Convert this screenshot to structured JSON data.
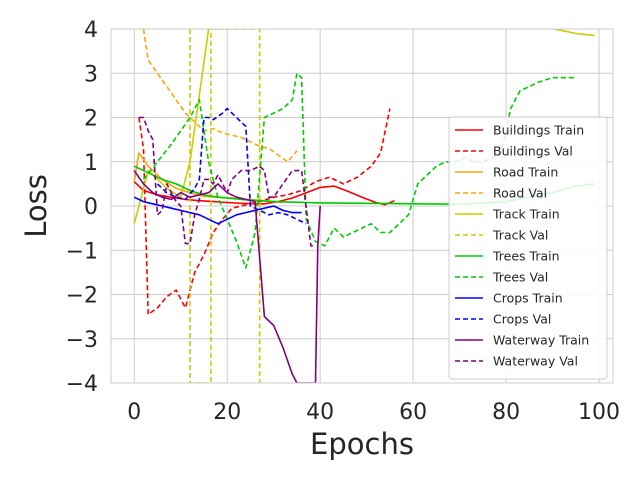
{
  "chart_data": {
    "type": "line",
    "xlabel": "Epochs",
    "ylabel": "Loss",
    "xlim": [
      -5,
      103
    ],
    "ylim": [
      -4,
      4
    ],
    "xticks": [
      0,
      20,
      40,
      60,
      80,
      100
    ],
    "xtick_labels": [
      "0",
      "20",
      "40",
      "60",
      "80",
      "100"
    ],
    "yticks": [
      -4,
      -3,
      -2,
      -1,
      0,
      1,
      2,
      3,
      4
    ],
    "ytick_labels": [
      "−4",
      "−3",
      "−2",
      "−1",
      "0",
      "1",
      "2",
      "3",
      "4"
    ],
    "grid": true,
    "legend_position": "right",
    "series": [
      {
        "name": "Buildings Train",
        "color": "#ff0000",
        "style": "solid",
        "points": [
          [
            0,
            0.55
          ],
          [
            2,
            0.35
          ],
          [
            5,
            0.25
          ],
          [
            8,
            0.2
          ],
          [
            11,
            0.15
          ],
          [
            14,
            0.12
          ],
          [
            17,
            0.1
          ],
          [
            20,
            0.08
          ],
          [
            23,
            0.06
          ],
          [
            26,
            0.05
          ],
          [
            28,
            0.05
          ],
          [
            31,
            0.1
          ],
          [
            34,
            0.18
          ],
          [
            37,
            0.3
          ],
          [
            40,
            0.42
          ],
          [
            43,
            0.45
          ],
          [
            46,
            0.33
          ],
          [
            49,
            0.2
          ],
          [
            52,
            0.08
          ],
          [
            54,
            0.03
          ],
          [
            56,
            0.12
          ]
        ]
      },
      {
        "name": "Buildings Val",
        "color": "#ff0000",
        "style": "dashed",
        "points": [
          [
            1,
            2.0
          ],
          [
            2,
            1.3
          ],
          [
            3,
            -2.45
          ],
          [
            5,
            -2.3
          ],
          [
            7,
            -2.05
          ],
          [
            9,
            -1.9
          ],
          [
            11,
            -2.3
          ],
          [
            13,
            -1.5
          ],
          [
            15,
            -1.1
          ],
          [
            17,
            -0.6
          ],
          [
            19,
            -0.3
          ],
          [
            21,
            -0.05
          ],
          [
            23,
            0.0
          ],
          [
            25,
            0.05
          ],
          [
            27,
            0.1
          ],
          [
            30,
            0.2
          ],
          [
            33,
            0.25
          ],
          [
            36,
            0.35
          ],
          [
            39,
            0.55
          ],
          [
            42,
            0.65
          ],
          [
            45,
            0.5
          ],
          [
            48,
            0.65
          ],
          [
            51,
            0.9
          ],
          [
            53,
            1.2
          ],
          [
            55,
            2.2
          ]
        ]
      },
      {
        "name": "Road Train",
        "color": "#ffa500",
        "style": "solid",
        "points": [
          [
            0,
            0.55
          ],
          [
            1,
            1.2
          ],
          [
            3,
            0.9
          ],
          [
            6,
            0.6
          ],
          [
            9,
            0.4
          ],
          [
            12,
            0.3
          ],
          [
            15,
            0.22
          ],
          [
            18,
            0.2
          ],
          [
            21,
            0.18
          ],
          [
            24,
            0.15
          ],
          [
            27,
            0.13
          ],
          [
            30,
            0.1
          ],
          [
            32,
            0.08
          ]
        ]
      },
      {
        "name": "Road Val",
        "color": "#ffa500",
        "style": "dashed",
        "points": [
          [
            2,
            4.0
          ],
          [
            3,
            3.3
          ],
          [
            5,
            3.0
          ],
          [
            7,
            2.7
          ],
          [
            9,
            2.4
          ],
          [
            11,
            2.1
          ],
          [
            13,
            1.9
          ],
          [
            15,
            1.7
          ],
          [
            17,
            1.75
          ],
          [
            19,
            1.65
          ],
          [
            21,
            1.6
          ],
          [
            23,
            1.55
          ],
          [
            25,
            1.45
          ],
          [
            27,
            1.35
          ],
          [
            29,
            1.3
          ],
          [
            31,
            1.15
          ],
          [
            33,
            1.0
          ],
          [
            35,
            1.25
          ]
        ]
      },
      {
        "name": "Track Train",
        "color": "#cccc00",
        "style": "solid",
        "points": [
          [
            0,
            -0.4
          ],
          [
            1,
            0.0
          ],
          [
            3,
            0.8
          ],
          [
            5,
            0.6
          ],
          [
            7,
            0.4
          ],
          [
            10,
            0.2
          ],
          [
            12,
            1.0
          ],
          [
            14,
            2.5
          ],
          [
            16,
            4.0
          ],
          [
            80,
            4.1
          ],
          [
            88,
            4.05
          ],
          [
            95,
            3.9
          ],
          [
            99,
            3.85
          ]
        ]
      },
      {
        "name": "Track Val",
        "color": "#cccc00",
        "style": "dashed",
        "points": [
          [
            12,
            4
          ],
          [
            12,
            -4
          ],
          [
            16.5,
            -4
          ],
          [
            16.5,
            4
          ],
          [
            27,
            4
          ],
          [
            27,
            -4
          ]
        ]
      },
      {
        "name": "Trees Train",
        "color": "#00cc00",
        "style": "solid",
        "points": [
          [
            0,
            0.9
          ],
          [
            3,
            0.75
          ],
          [
            6,
            0.6
          ],
          [
            9,
            0.5
          ],
          [
            12,
            0.35
          ],
          [
            15,
            0.25
          ],
          [
            18,
            0.2
          ],
          [
            21,
            0.17
          ],
          [
            24,
            0.14
          ],
          [
            30,
            0.1
          ],
          [
            40,
            0.07
          ],
          [
            50,
            0.06
          ],
          [
            60,
            0.05
          ],
          [
            70,
            0.04
          ],
          [
            80,
            0.1
          ],
          [
            90,
            0.3
          ],
          [
            95,
            0.45
          ],
          [
            99,
            0.5
          ]
        ]
      },
      {
        "name": "Trees Val",
        "color": "#00cc00",
        "style": "dashed",
        "points": [
          [
            2,
            0.6
          ],
          [
            5,
            1.0
          ],
          [
            8,
            1.4
          ],
          [
            10,
            1.7
          ],
          [
            12,
            2.0
          ],
          [
            14,
            2.4
          ],
          [
            16,
            1.0
          ],
          [
            18,
            0.2
          ],
          [
            20,
            -0.3
          ],
          [
            22,
            -0.8
          ],
          [
            24,
            -1.4
          ],
          [
            26,
            -0.6
          ],
          [
            28,
            2.0
          ],
          [
            30,
            2.1
          ],
          [
            32,
            2.2
          ],
          [
            34,
            2.4
          ],
          [
            35,
            3.0
          ],
          [
            36,
            2.9
          ],
          [
            37,
            -0.3
          ],
          [
            39,
            -0.8
          ],
          [
            41,
            -0.9
          ],
          [
            43,
            -0.5
          ],
          [
            45,
            -0.7
          ],
          [
            47,
            -0.6
          ],
          [
            49,
            -0.5
          ],
          [
            51,
            -0.4
          ],
          [
            53,
            -0.6
          ],
          [
            55,
            -0.6
          ],
          [
            57,
            -0.4
          ],
          [
            59,
            -0.2
          ],
          [
            61,
            0.5
          ],
          [
            63,
            0.7
          ],
          [
            65,
            0.9
          ],
          [
            67,
            1.0
          ],
          [
            69,
            1.0
          ],
          [
            71,
            1.1
          ],
          [
            73,
            1.0
          ],
          [
            75,
            1.0
          ],
          [
            77,
            1.1
          ],
          [
            79,
            1.2
          ],
          [
            81,
            2.2
          ],
          [
            83,
            2.6
          ],
          [
            85,
            2.7
          ],
          [
            87,
            2.8
          ],
          [
            90,
            2.9
          ],
          [
            93,
            2.9
          ],
          [
            95,
            2.9
          ]
        ]
      },
      {
        "name": "Crops Train",
        "color": "#0000ff",
        "style": "solid",
        "points": [
          [
            0,
            0.2
          ],
          [
            2,
            0.1
          ],
          [
            4,
            0.05
          ],
          [
            6,
            0.0
          ],
          [
            8,
            -0.05
          ],
          [
            10,
            -0.1
          ],
          [
            12,
            -0.15
          ],
          [
            14,
            -0.2
          ],
          [
            16,
            -0.3
          ],
          [
            18,
            -0.4
          ],
          [
            20,
            -0.3
          ],
          [
            22,
            -0.2
          ],
          [
            24,
            -0.15
          ],
          [
            26,
            -0.1
          ],
          [
            28,
            -0.05
          ],
          [
            30,
            0.0
          ],
          [
            32,
            -0.1
          ],
          [
            34,
            -0.15
          ],
          [
            36,
            -0.15
          ]
        ]
      },
      {
        "name": "Crops Val",
        "color": "#0000ff",
        "style": "dashed",
        "points": [
          [
            5,
            0.5
          ],
          [
            7,
            0.3
          ],
          [
            9,
            0.2
          ],
          [
            11,
            0.15
          ],
          [
            13,
            0.4
          ],
          [
            14,
            0.6
          ],
          [
            15,
            2.0
          ],
          [
            16,
            2.0
          ],
          [
            17,
            1.95
          ],
          [
            19,
            2.1
          ],
          [
            20,
            2.2
          ],
          [
            21,
            2.1
          ],
          [
            22,
            2.0
          ],
          [
            23,
            1.9
          ],
          [
            24,
            1.8
          ],
          [
            25,
            0.0
          ],
          [
            27,
            -0.1
          ],
          [
            29,
            -0.2
          ],
          [
            31,
            -0.15
          ],
          [
            33,
            -0.2
          ],
          [
            35,
            -0.3
          ],
          [
            37,
            -0.4
          ]
        ]
      },
      {
        "name": "Waterway Train",
        "color": "#800080",
        "style": "solid",
        "points": [
          [
            0,
            0.8
          ],
          [
            2,
            0.5
          ],
          [
            4,
            0.3
          ],
          [
            6,
            0.2
          ],
          [
            8,
            0.15
          ],
          [
            10,
            0.3
          ],
          [
            12,
            0.2
          ],
          [
            14,
            0.25
          ],
          [
            16,
            0.3
          ],
          [
            18,
            0.5
          ],
          [
            20,
            0.3
          ],
          [
            22,
            0.2
          ],
          [
            24,
            0.15
          ],
          [
            26,
            0.1
          ],
          [
            28,
            -2.5
          ],
          [
            30,
            -2.7
          ],
          [
            32,
            -3.2
          ],
          [
            34,
            -3.8
          ],
          [
            35,
            -4.0
          ],
          [
            39,
            -4.0
          ],
          [
            39.5,
            -0.9
          ],
          [
            40,
            0.0
          ]
        ]
      },
      {
        "name": "Waterway Val",
        "color": "#800080",
        "style": "dashed",
        "points": [
          [
            1,
            2.0
          ],
          [
            2,
            2.0
          ],
          [
            3,
            1.7
          ],
          [
            4,
            1.5
          ],
          [
            5,
            -0.2
          ],
          [
            6,
            -0.1
          ],
          [
            7,
            0.5
          ],
          [
            8,
            0.3
          ],
          [
            9,
            0.1
          ],
          [
            10,
            0.0
          ],
          [
            11,
            -0.85
          ],
          [
            12,
            -0.85
          ],
          [
            13,
            -0.2
          ],
          [
            14,
            0.15
          ],
          [
            15,
            0.6
          ],
          [
            16,
            0.6
          ],
          [
            17,
            0.5
          ],
          [
            18,
            0.7
          ],
          [
            19,
            0.5
          ],
          [
            20,
            0.3
          ],
          [
            21,
            0.6
          ],
          [
            22,
            0.7
          ],
          [
            23,
            0.8
          ],
          [
            25,
            0.8
          ],
          [
            27,
            0.9
          ],
          [
            28,
            0.8
          ],
          [
            29,
            0.2
          ],
          [
            30,
            0.2
          ],
          [
            32,
            0.5
          ],
          [
            34,
            0.8
          ],
          [
            36,
            0.8
          ],
          [
            38,
            -0.9
          ],
          [
            39,
            -0.9
          ]
        ]
      }
    ]
  }
}
